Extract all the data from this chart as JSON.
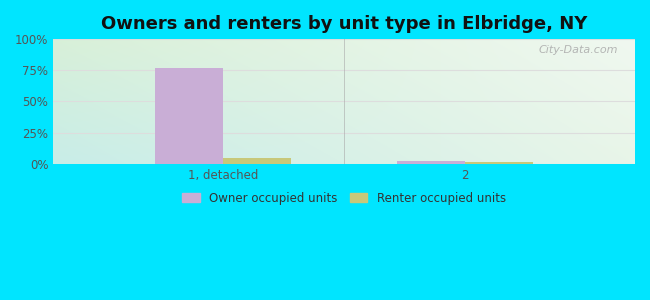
{
  "title": "Owners and renters by unit type in Elbridge, NY",
  "categories": [
    "1, detached",
    "2"
  ],
  "owner_values": [
    77,
    2
  ],
  "renter_values": [
    5,
    1.5
  ],
  "owner_color": "#c9aed6",
  "renter_color": "#c8c87a",
  "background_outer": "#00e5ff",
  "bg_top_left": "#d8f0d8",
  "bg_top_right": "#f0f8f0",
  "bg_bottom_left": "#c8ede8",
  "bg_bottom_right": "#e8f5e8",
  "yticks": [
    0,
    25,
    50,
    75,
    100
  ],
  "ytick_labels": [
    "0%",
    "25%",
    "50%",
    "75%",
    "100%"
  ],
  "ylim": [
    0,
    100
  ],
  "title_fontsize": 13,
  "bar_width": 0.28,
  "legend_owner": "Owner occupied units",
  "legend_renter": "Renter occupied units",
  "watermark": "City-Data.com",
  "gridline_color": "#dddddd",
  "separator_color": "#aaaaaa"
}
